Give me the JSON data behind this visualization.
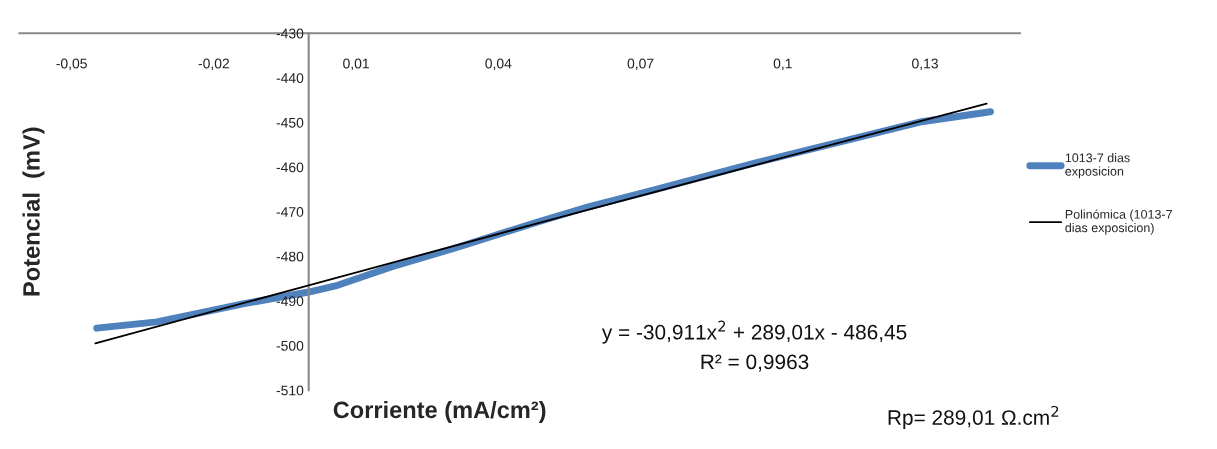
{
  "chart_data": {
    "type": "line",
    "xlabel": "Corriente (mA/cm²)",
    "ylabel": "Potencial  (mV)",
    "series": [
      {
        "name": "1013-7 dias exposicion",
        "color": "#4f81bd",
        "x": [
          -0.0447,
          -0.032,
          -0.0136,
          0,
          0.0061,
          0.0174,
          0.0316,
          0.0483,
          0.059,
          0.0725,
          0.0937,
          0.1149,
          0.1289,
          0.1438
        ],
        "values": [
          -496.1,
          -494.7,
          -490.6,
          -488.0,
          -486.5,
          -482.4,
          -477.9,
          -472.3,
          -468.9,
          -465.2,
          -459.2,
          -453.6,
          -449.9,
          -447.6
        ]
      },
      {
        "name": "Polinómica (1013-7 dias exposicion)",
        "color": "#000000",
        "x": [
          -0.045,
          0,
          0.05,
          0.1,
          0.143
        ],
        "values": [
          -499.5,
          -486.5,
          -472.1,
          -457.9,
          -445.8
        ]
      }
    ],
    "xlim": [
      -0.061,
      0.15
    ],
    "ylim": [
      -510,
      -430
    ],
    "xticks": [
      {
        "value": -0.05,
        "label": "-0,05"
      },
      {
        "value": -0.02,
        "label": "-0,02"
      },
      {
        "value": 0.01,
        "label": "0,01"
      },
      {
        "value": 0.04,
        "label": "0,04"
      },
      {
        "value": 0.07,
        "label": "0,07"
      },
      {
        "value": 0.1,
        "label": "0,1"
      },
      {
        "value": 0.13,
        "label": "0,13"
      }
    ],
    "yticks": [
      -510,
      -500,
      -490,
      -480,
      -470,
      -460,
      -450,
      -440,
      -430
    ],
    "legend": "right",
    "grid": false,
    "annotations": [
      "y = -30,911x$^{2}$ + 289,01x - 486,45",
      "R² = 0,9963",
      "Rp= 289,01 Ω.cm$^{2}$"
    ]
  }
}
